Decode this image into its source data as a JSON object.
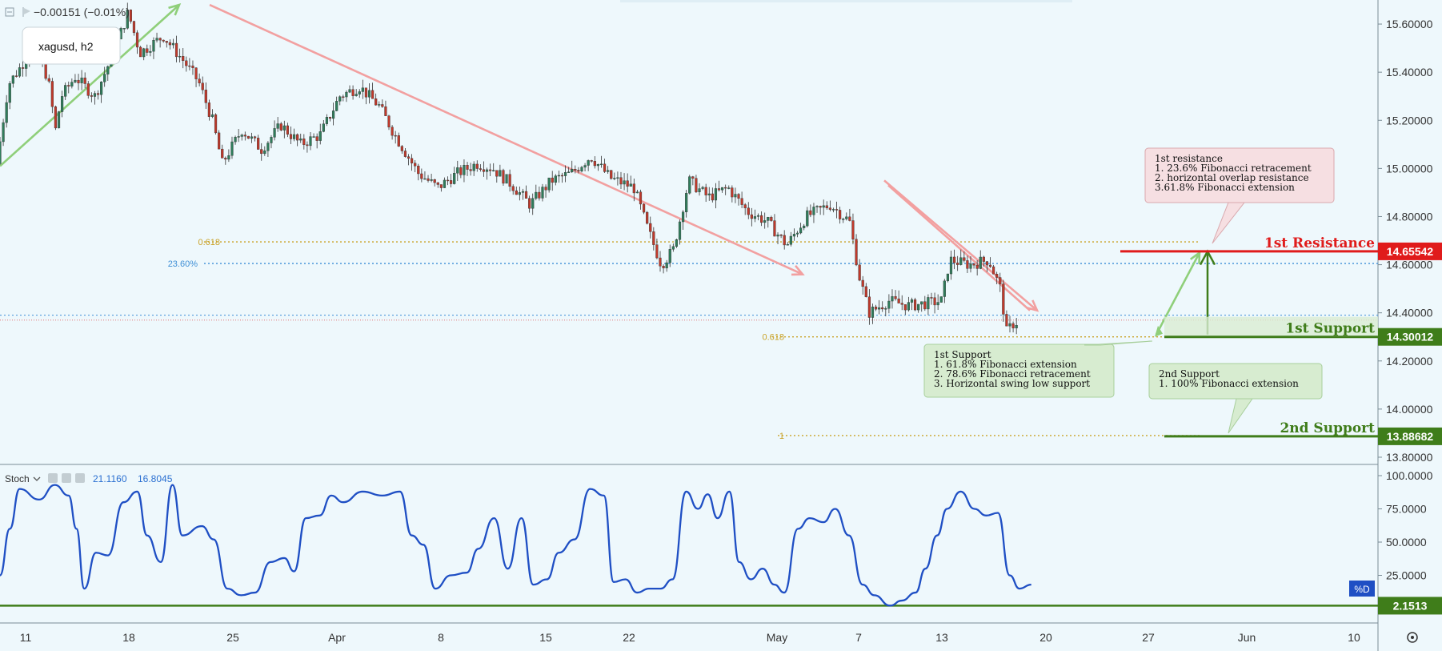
{
  "header": {
    "change_text": "−0.00151 (−0.01%)",
    "symbol_label": "xagusd, h2"
  },
  "chart_data": [
    {
      "type": "candlestick",
      "symbol": "xagusd",
      "timeframe": "h2",
      "y_ticks": [
        15.6,
        15.4,
        15.2,
        15.0,
        14.8,
        14.6,
        14.4,
        14.2,
        14.0,
        13.8
      ],
      "y_tick_labels": [
        "15.60000",
        "15.40000",
        "15.20000",
        "15.00000",
        "14.80000",
        "14.60000",
        "14.40000",
        "14.20000",
        "14.00000",
        "13.80000"
      ],
      "ylim": [
        13.77,
        15.7
      ],
      "x_ticks": [
        "11",
        "18",
        "25",
        "Apr",
        "8",
        "15",
        "22",
        "May",
        "7",
        "13",
        "20",
        "27",
        "Jun",
        "10"
      ],
      "price_path": [
        [
          0,
          15.02
        ],
        [
          0.6,
          15.35
        ],
        [
          1.2,
          15.42
        ],
        [
          1.8,
          15.5
        ],
        [
          2.6,
          15.38
        ],
        [
          3.0,
          15.16
        ],
        [
          3.3,
          15.3
        ],
        [
          4.0,
          15.38
        ],
        [
          5.0,
          15.3
        ],
        [
          5.8,
          15.45
        ],
        [
          6.4,
          15.58
        ],
        [
          6.7,
          15.65
        ],
        [
          7.3,
          15.48
        ],
        [
          8.5,
          15.55
        ],
        [
          9.5,
          15.45
        ],
        [
          10.3,
          15.36
        ],
        [
          11.0,
          15.2
        ],
        [
          11.5,
          15.02
        ],
        [
          12.5,
          15.16
        ],
        [
          13.5,
          15.08
        ],
        [
          14.5,
          15.18
        ],
        [
          15.5,
          15.1
        ],
        [
          16.5,
          15.14
        ],
        [
          17.5,
          15.3
        ],
        [
          18.5,
          15.34
        ],
        [
          19.5,
          15.26
        ],
        [
          20.3,
          15.14
        ],
        [
          21.5,
          14.98
        ],
        [
          22.5,
          14.92
        ],
        [
          23.5,
          14.98
        ],
        [
          24.5,
          15.02
        ],
        [
          25.3,
          15.0
        ],
        [
          26.3,
          14.93
        ],
        [
          27.2,
          14.85
        ],
        [
          28.3,
          14.95
        ],
        [
          29.3,
          14.98
        ],
        [
          30.3,
          15.05
        ],
        [
          31.3,
          14.96
        ],
        [
          32.5,
          14.92
        ],
        [
          33.2,
          14.75
        ],
        [
          33.9,
          14.6
        ],
        [
          34.5,
          14.66
        ],
        [
          35.3,
          14.95
        ],
        [
          36.3,
          14.88
        ],
        [
          37.3,
          14.92
        ],
        [
          38.3,
          14.82
        ],
        [
          39.3,
          14.78
        ],
        [
          40.3,
          14.68
        ],
        [
          41.3,
          14.8
        ],
        [
          42.5,
          14.85
        ],
        [
          43.5,
          14.78
        ],
        [
          44.0,
          14.55
        ],
        [
          44.5,
          14.4
        ],
        [
          45.5,
          14.45
        ],
        [
          46.5,
          14.43
        ],
        [
          47.5,
          14.44
        ],
        [
          48.2,
          14.45
        ],
        [
          48.6,
          14.62
        ],
        [
          49.6,
          14.6
        ],
        [
          50.6,
          14.62
        ],
        [
          51.2,
          14.5
        ],
        [
          51.5,
          14.32
        ],
        [
          51.9,
          14.36
        ]
      ],
      "stoch_ticks": [
        100,
        75,
        50,
        25
      ],
      "stoch_tick_labels": [
        "100.0000",
        "75.0000",
        "50.0000",
        "25.0000"
      ],
      "stoch_name": "Stoch",
      "stoch_values_text": [
        "21.1160",
        "16.8045"
      ],
      "stoch_d_label": "%D",
      "stoch_marker_value": 2.1513,
      "stoch_marker_label": "2.1513",
      "stoch_path": [
        [
          0,
          25
        ],
        [
          0.5,
          60
        ],
        [
          1.0,
          90
        ],
        [
          2.0,
          82
        ],
        [
          2.8,
          93
        ],
        [
          3.5,
          85
        ],
        [
          3.9,
          60
        ],
        [
          4.3,
          15
        ],
        [
          4.9,
          42
        ],
        [
          5.5,
          40
        ],
        [
          6.3,
          80
        ],
        [
          7.0,
          88
        ],
        [
          7.5,
          55
        ],
        [
          8.2,
          35
        ],
        [
          8.8,
          93
        ],
        [
          9.3,
          55
        ],
        [
          10.3,
          62
        ],
        [
          10.9,
          52
        ],
        [
          11.6,
          15
        ],
        [
          12.3,
          10
        ],
        [
          13.0,
          12
        ],
        [
          13.8,
          35
        ],
        [
          14.5,
          38
        ],
        [
          15.0,
          28
        ],
        [
          15.6,
          68
        ],
        [
          16.3,
          70
        ],
        [
          16.9,
          85
        ],
        [
          17.5,
          80
        ],
        [
          18.5,
          88
        ],
        [
          19.5,
          85
        ],
        [
          20.4,
          88
        ],
        [
          21.0,
          55
        ],
        [
          21.6,
          48
        ],
        [
          22.2,
          15
        ],
        [
          23.0,
          25
        ],
        [
          23.8,
          27
        ],
        [
          24.4,
          45
        ],
        [
          25.2,
          68
        ],
        [
          25.9,
          30
        ],
        [
          26.6,
          68
        ],
        [
          27.2,
          18
        ],
        [
          27.9,
          22
        ],
        [
          28.5,
          42
        ],
        [
          29.3,
          52
        ],
        [
          30.1,
          90
        ],
        [
          30.8,
          85
        ],
        [
          31.3,
          20
        ],
        [
          31.9,
          22
        ],
        [
          32.5,
          12
        ],
        [
          33.1,
          15
        ],
        [
          33.7,
          15
        ],
        [
          34.3,
          22
        ],
        [
          35.0,
          88
        ],
        [
          35.6,
          75
        ],
        [
          36.1,
          86
        ],
        [
          36.6,
          68
        ],
        [
          37.2,
          88
        ],
        [
          37.7,
          35
        ],
        [
          38.3,
          22
        ],
        [
          38.9,
          30
        ],
        [
          39.5,
          18
        ],
        [
          40.0,
          12
        ],
        [
          40.7,
          60
        ],
        [
          41.3,
          68
        ],
        [
          42.0,
          65
        ],
        [
          42.6,
          75
        ],
        [
          43.3,
          55
        ],
        [
          44.0,
          18
        ],
        [
          44.6,
          10
        ],
        [
          45.4,
          2.2
        ],
        [
          46.0,
          6
        ],
        [
          46.7,
          12
        ],
        [
          47.2,
          30
        ],
        [
          47.8,
          55
        ],
        [
          48.3,
          75
        ],
        [
          49.0,
          88
        ],
        [
          49.7,
          75
        ],
        [
          50.3,
          70
        ],
        [
          50.9,
          72
        ],
        [
          51.5,
          25
        ],
        [
          52.0,
          15
        ],
        [
          52.6,
          18
        ]
      ],
      "levels": [
        {
          "name": "1st Resistance",
          "label": "1st Resistance",
          "value": 14.65542,
          "value_label": "14.65542",
          "color": "#e01b1b"
        },
        {
          "name": "1st Support",
          "label": "1st Support",
          "value": 14.30012,
          "value_label": "14.30012",
          "color": "#3f7d1a"
        },
        {
          "name": "2nd Support",
          "label": "2nd Support",
          "value": 13.88682,
          "value_label": "13.88682",
          "color": "#3f7d1a"
        }
      ],
      "fib_lines": [
        {
          "label": "0.618",
          "value": 14.695,
          "color": "#c9a227"
        },
        {
          "label": "23.60%",
          "value": 14.605,
          "color": "#3f8fd6"
        },
        {
          "label": "0.618",
          "value": 14.3,
          "color": "#c9a227"
        },
        {
          "label": "1",
          "value": 13.89,
          "color": "#c9a227"
        }
      ],
      "annotations": {
        "resistance_box": [
          "1st resistance",
          "1. 23.6% Fibonacci retracement",
          "2. horizontal overlap resistance",
          "3.61.8% Fibonacci extension"
        ],
        "support1_box": [
          "1st Support",
          "1. 61.8% Fibonacci extension",
          "2. 78.6% Fibonacci retracement",
          "3. Horizontal swing low support"
        ],
        "support2_box": [
          "2nd Support",
          "1. 100% Fibonacci extension"
        ]
      },
      "colors": {
        "up_candle": "#2f7d5b",
        "down_candle": "#c0392b",
        "stoch_line": "#1f4fc4",
        "trend_up": "#8fcf7a",
        "trend_down": "#f2a0a0"
      }
    }
  ]
}
